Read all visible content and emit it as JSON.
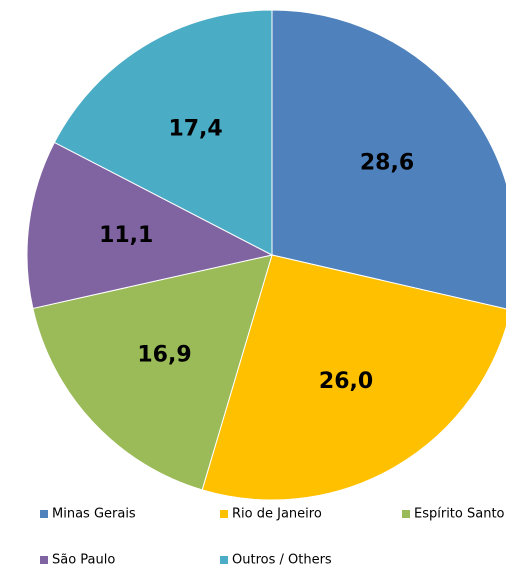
{
  "chart_data": {
    "type": "pie",
    "categories": [
      "Minas Gerais",
      "Rio de Janeiro",
      "Espírito Santo",
      "São Paulo",
      "Outros / Others"
    ],
    "values": [
      28.6,
      26.0,
      16.9,
      11.1,
      17.4
    ],
    "value_labels": [
      "28,6",
      "26,0",
      "16,9",
      "11,1",
      "17,4"
    ],
    "colors": [
      "#4f81bd",
      "#ffc000",
      "#9bbb59",
      "#8064a2",
      "#4bacc6"
    ],
    "legend": "bottom"
  }
}
